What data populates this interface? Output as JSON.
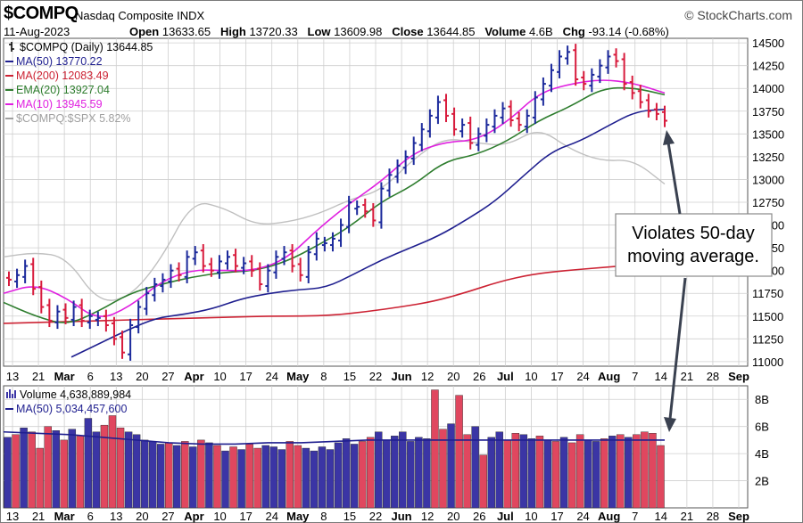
{
  "header": {
    "symbol": "$COMPQ",
    "name": "Nasdaq Composite INDX",
    "credit": "© StockCharts.com",
    "date": "11-Aug-2023",
    "quote": [
      {
        "label": "Open",
        "value": "13633.65"
      },
      {
        "label": "High",
        "value": "13720.33"
      },
      {
        "label": "Low",
        "value": "13609.98"
      },
      {
        "label": "Close",
        "value": "13644.85"
      },
      {
        "label": "Volume",
        "value": "4.6B"
      },
      {
        "label": "Chg",
        "value": "-93.14 (-0.68%)"
      }
    ]
  },
  "legend": [
    {
      "text": "$COMPQ (Daily) 13644.85",
      "color": "#000000"
    },
    {
      "text": "MA(50) 13770.22",
      "color": "#1f1f8f"
    },
    {
      "text": "MA(200) 12083.49",
      "color": "#cc2233"
    },
    {
      "text": "EMA(20) 13927.04",
      "color": "#2e7d2e"
    },
    {
      "text": "MA(10) 13945.59",
      "color": "#e020e0"
    },
    {
      "text": "$COMPQ:$SPX 5.82%",
      "color": "#a0a0a0"
    }
  ],
  "volume_legend": [
    {
      "text": "Volume 4,638,889,984",
      "color": "#000000"
    },
    {
      "text": "MA(50) 5,034,457,600",
      "color": "#1f1f8f"
    }
  ],
  "annotation": {
    "line1": "Violates 50-day",
    "line2": "moving average."
  },
  "colors": {
    "up": "#1c2a9c",
    "down": "#d81b3c",
    "vol_up": "#3b35a5",
    "vol_down": "#e0475f",
    "ma50": "#1f1f8f",
    "ma200": "#cc2233",
    "ema20": "#2e7d2e",
    "ma10": "#e020e0",
    "ratio": "#c0c0c0",
    "grid": "#cfcfcf"
  },
  "chart_data": {
    "type": "line",
    "price_ticks": [
      "14500",
      "14250",
      "14000",
      "13750",
      "13500",
      "13250",
      "13000",
      "12750",
      "12500",
      "12250",
      "12000",
      "11750",
      "11500",
      "11250",
      "11000"
    ],
    "volume_ticks": [
      "8B",
      "6B",
      "4B",
      "2B"
    ],
    "x_labels": [
      "13",
      "21",
      "Mar",
      "6",
      "13",
      "20",
      "27",
      "Apr",
      "10",
      "17",
      "24",
      "May",
      "8",
      "15",
      "22",
      "Jun",
      "12",
      "20",
      "26",
      "Jul",
      "10",
      "17",
      "24",
      "Aug",
      "7",
      "14",
      "21",
      "28",
      "Sep"
    ],
    "x_label_bold": [
      "Mar",
      "Apr",
      "May",
      "Jun",
      "Jul",
      "Aug",
      "Sep"
    ],
    "ylim": [
      10950,
      14550
    ],
    "series_ma50": {
      "name": "MA(50)",
      "values": [
        11050,
        11200,
        11350,
        11480,
        11520,
        11580,
        11690,
        11750,
        11790,
        11810,
        11960,
        12120,
        12250,
        12380,
        12560,
        12760,
        13040,
        13310,
        13420,
        13590,
        13750,
        13770
      ]
    },
    "series_ma200": {
      "name": "MA(200)",
      "values": [
        11420,
        11430,
        11440,
        11450,
        11460,
        11470,
        11480,
        11490,
        11500,
        11500,
        11510,
        11550,
        11600,
        11660,
        11760,
        11880,
        11960,
        12000,
        12030,
        12060,
        12083
      ]
    },
    "series_ema20": {
      "name": "EMA(20)",
      "values": [
        11650,
        11500,
        11400,
        11550,
        11750,
        11850,
        11930,
        11980,
        12000,
        12100,
        12280,
        12480,
        12760,
        12930,
        13200,
        13270,
        13420,
        13650,
        13800,
        14000,
        14010,
        13930
      ]
    },
    "series_ma10": {
      "name": "MA(10)",
      "values": [
        11750,
        11850,
        11700,
        11450,
        11600,
        11880,
        12010,
        12000,
        12000,
        12130,
        12460,
        12740,
        12980,
        13290,
        13410,
        13430,
        13630,
        13950,
        14050,
        14100,
        14060,
        13950
      ]
    },
    "series_ratio": {
      "name": "$COMPQ:$SPX",
      "values": [
        12150,
        12200,
        12150,
        11650,
        11700,
        12120,
        12770,
        12690,
        12500,
        12530,
        12620,
        12780,
        12880,
        13220,
        13460,
        13400,
        13370,
        13570,
        13330,
        13200,
        13220,
        12950
      ]
    },
    "candles": [
      {
        "close": 11900,
        "up": false
      },
      {
        "close": 11950,
        "up": true
      },
      {
        "close": 12050,
        "up": true
      },
      {
        "close": 11800,
        "up": false
      },
      {
        "close": 11600,
        "up": false
      },
      {
        "close": 11450,
        "up": false
      },
      {
        "close": 11550,
        "up": true
      },
      {
        "close": 11480,
        "up": false
      },
      {
        "close": 11600,
        "up": true
      },
      {
        "close": 11450,
        "up": false
      },
      {
        "close": 11500,
        "up": true
      },
      {
        "close": 11480,
        "up": true
      },
      {
        "close": 11400,
        "up": false
      },
      {
        "close": 11250,
        "up": false
      },
      {
        "close": 11100,
        "up": false
      },
      {
        "close": 11400,
        "up": true
      },
      {
        "close": 11600,
        "up": true
      },
      {
        "close": 11750,
        "up": true
      },
      {
        "close": 11850,
        "up": true
      },
      {
        "close": 11900,
        "up": true
      },
      {
        "close": 12000,
        "up": true
      },
      {
        "close": 11950,
        "up": false
      },
      {
        "close": 12150,
        "up": true
      },
      {
        "close": 12200,
        "up": true
      },
      {
        "close": 12050,
        "up": false
      },
      {
        "close": 12000,
        "up": false
      },
      {
        "close": 12100,
        "up": true
      },
      {
        "close": 12150,
        "up": true
      },
      {
        "close": 12050,
        "up": false
      },
      {
        "close": 12080,
        "up": true
      },
      {
        "close": 12000,
        "up": false
      },
      {
        "close": 11850,
        "up": false
      },
      {
        "close": 12000,
        "up": true
      },
      {
        "close": 12150,
        "up": true
      },
      {
        "close": 12200,
        "up": true
      },
      {
        "close": 12050,
        "up": false
      },
      {
        "close": 11950,
        "up": false
      },
      {
        "close": 12200,
        "up": true
      },
      {
        "close": 12350,
        "up": true
      },
      {
        "close": 12300,
        "up": true
      },
      {
        "close": 12350,
        "up": true
      },
      {
        "close": 12500,
        "up": true
      },
      {
        "close": 12750,
        "up": true
      },
      {
        "close": 12700,
        "up": true
      },
      {
        "close": 12650,
        "up": false
      },
      {
        "close": 12550,
        "up": false
      },
      {
        "close": 12900,
        "up": true
      },
      {
        "close": 13050,
        "up": true
      },
      {
        "close": 13150,
        "up": true
      },
      {
        "close": 13250,
        "up": true
      },
      {
        "close": 13400,
        "up": true
      },
      {
        "close": 13550,
        "up": true
      },
      {
        "close": 13700,
        "up": true
      },
      {
        "close": 13850,
        "up": true
      },
      {
        "close": 13700,
        "up": false
      },
      {
        "close": 13550,
        "up": false
      },
      {
        "close": 13600,
        "up": true
      },
      {
        "close": 13400,
        "up": false
      },
      {
        "close": 13500,
        "up": true
      },
      {
        "close": 13600,
        "up": true
      },
      {
        "close": 13700,
        "up": true
      },
      {
        "close": 13780,
        "up": true
      },
      {
        "close": 13650,
        "up": false
      },
      {
        "close": 13600,
        "up": false
      },
      {
        "close": 13700,
        "up": true
      },
      {
        "close": 13900,
        "up": true
      },
      {
        "close": 14050,
        "up": true
      },
      {
        "close": 14200,
        "up": true
      },
      {
        "close": 14350,
        "up": true
      },
      {
        "close": 14400,
        "up": true
      },
      {
        "close": 14100,
        "up": false
      },
      {
        "close": 14050,
        "up": false
      },
      {
        "close": 14150,
        "up": true
      },
      {
        "close": 14250,
        "up": true
      },
      {
        "close": 14350,
        "up": true
      },
      {
        "close": 14300,
        "up": false
      },
      {
        "close": 14050,
        "up": false
      },
      {
        "close": 13950,
        "up": false
      },
      {
        "close": 13850,
        "up": false
      },
      {
        "close": 13750,
        "up": false
      },
      {
        "close": 13720,
        "up": false
      },
      {
        "close": 13645,
        "up": false
      }
    ],
    "volume": [
      {
        "v": 5.2,
        "up": true
      },
      {
        "v": 5.4,
        "up": false
      },
      {
        "v": 5.9,
        "up": true
      },
      {
        "v": 5.6,
        "up": false
      },
      {
        "v": 4.4,
        "up": false
      },
      {
        "v": 6.0,
        "up": false
      },
      {
        "v": 5.7,
        "up": true
      },
      {
        "v": 5.0,
        "up": false
      },
      {
        "v": 5.8,
        "up": true
      },
      {
        "v": 5.3,
        "up": false
      },
      {
        "v": 6.6,
        "up": true
      },
      {
        "v": 5.6,
        "up": true
      },
      {
        "v": 6.1,
        "up": false
      },
      {
        "v": 6.8,
        "up": false
      },
      {
        "v": 5.9,
        "up": false
      },
      {
        "v": 5.6,
        "up": true
      },
      {
        "v": 5.4,
        "up": true
      },
      {
        "v": 5.0,
        "up": true
      },
      {
        "v": 4.9,
        "up": true
      },
      {
        "v": 4.7,
        "up": true
      },
      {
        "v": 4.8,
        "up": false
      },
      {
        "v": 4.6,
        "up": true
      },
      {
        "v": 4.9,
        "up": false
      },
      {
        "v": 4.5,
        "up": true
      },
      {
        "v": 5.0,
        "up": false
      },
      {
        "v": 4.8,
        "up": true
      },
      {
        "v": 4.6,
        "up": false
      },
      {
        "v": 4.2,
        "up": true
      },
      {
        "v": 4.5,
        "up": false
      },
      {
        "v": 4.3,
        "up": true
      },
      {
        "v": 4.7,
        "up": false
      },
      {
        "v": 4.4,
        "up": false
      },
      {
        "v": 4.6,
        "up": true
      },
      {
        "v": 4.5,
        "up": true
      },
      {
        "v": 4.3,
        "up": true
      },
      {
        "v": 4.9,
        "up": false
      },
      {
        "v": 4.6,
        "up": false
      },
      {
        "v": 4.4,
        "up": true
      },
      {
        "v": 4.2,
        "up": true
      },
      {
        "v": 4.5,
        "up": true
      },
      {
        "v": 4.3,
        "up": true
      },
      {
        "v": 4.8,
        "up": true
      },
      {
        "v": 5.1,
        "up": true
      },
      {
        "v": 4.7,
        "up": true
      },
      {
        "v": 4.9,
        "up": false
      },
      {
        "v": 5.2,
        "up": false
      },
      {
        "v": 5.6,
        "up": true
      },
      {
        "v": 5.0,
        "up": true
      },
      {
        "v": 5.3,
        "up": true
      },
      {
        "v": 5.6,
        "up": true
      },
      {
        "v": 4.9,
        "up": true
      },
      {
        "v": 5.2,
        "up": true
      },
      {
        "v": 5.1,
        "up": true
      },
      {
        "v": 8.7,
        "up": false
      },
      {
        "v": 5.8,
        "up": false
      },
      {
        "v": 6.2,
        "up": true
      },
      {
        "v": 8.3,
        "up": false
      },
      {
        "v": 5.4,
        "up": false
      },
      {
        "v": 6.0,
        "up": true
      },
      {
        "v": 3.9,
        "up": false
      },
      {
        "v": 5.2,
        "up": true
      },
      {
        "v": 5.6,
        "up": true
      },
      {
        "v": 5.0,
        "up": false
      },
      {
        "v": 5.5,
        "up": false
      },
      {
        "v": 5.4,
        "up": true
      },
      {
        "v": 5.1,
        "up": true
      },
      {
        "v": 5.3,
        "up": false
      },
      {
        "v": 5.0,
        "up": true
      },
      {
        "v": 4.9,
        "up": false
      },
      {
        "v": 5.2,
        "up": true
      },
      {
        "v": 4.8,
        "up": false
      },
      {
        "v": 5.4,
        "up": false
      },
      {
        "v": 5.0,
        "up": true
      },
      {
        "v": 4.9,
        "up": true
      },
      {
        "v": 5.1,
        "up": false
      },
      {
        "v": 5.3,
        "up": true
      },
      {
        "v": 5.4,
        "up": false
      },
      {
        "v": 5.2,
        "up": true
      },
      {
        "v": 5.4,
        "up": false
      },
      {
        "v": 5.6,
        "up": false
      },
      {
        "v": 5.5,
        "up": false
      },
      {
        "v": 4.6,
        "up": false
      }
    ],
    "volume_ma": {
      "name": "MA(50)",
      "values": [
        5.6,
        5.5,
        5.4,
        5.2,
        5.0,
        4.8,
        4.7,
        4.7,
        4.8,
        4.8,
        4.9,
        5.0,
        5.0,
        5.0,
        5.0,
        5.0,
        5.0,
        5.0,
        5.0,
        5.0,
        5.0
      ]
    }
  }
}
